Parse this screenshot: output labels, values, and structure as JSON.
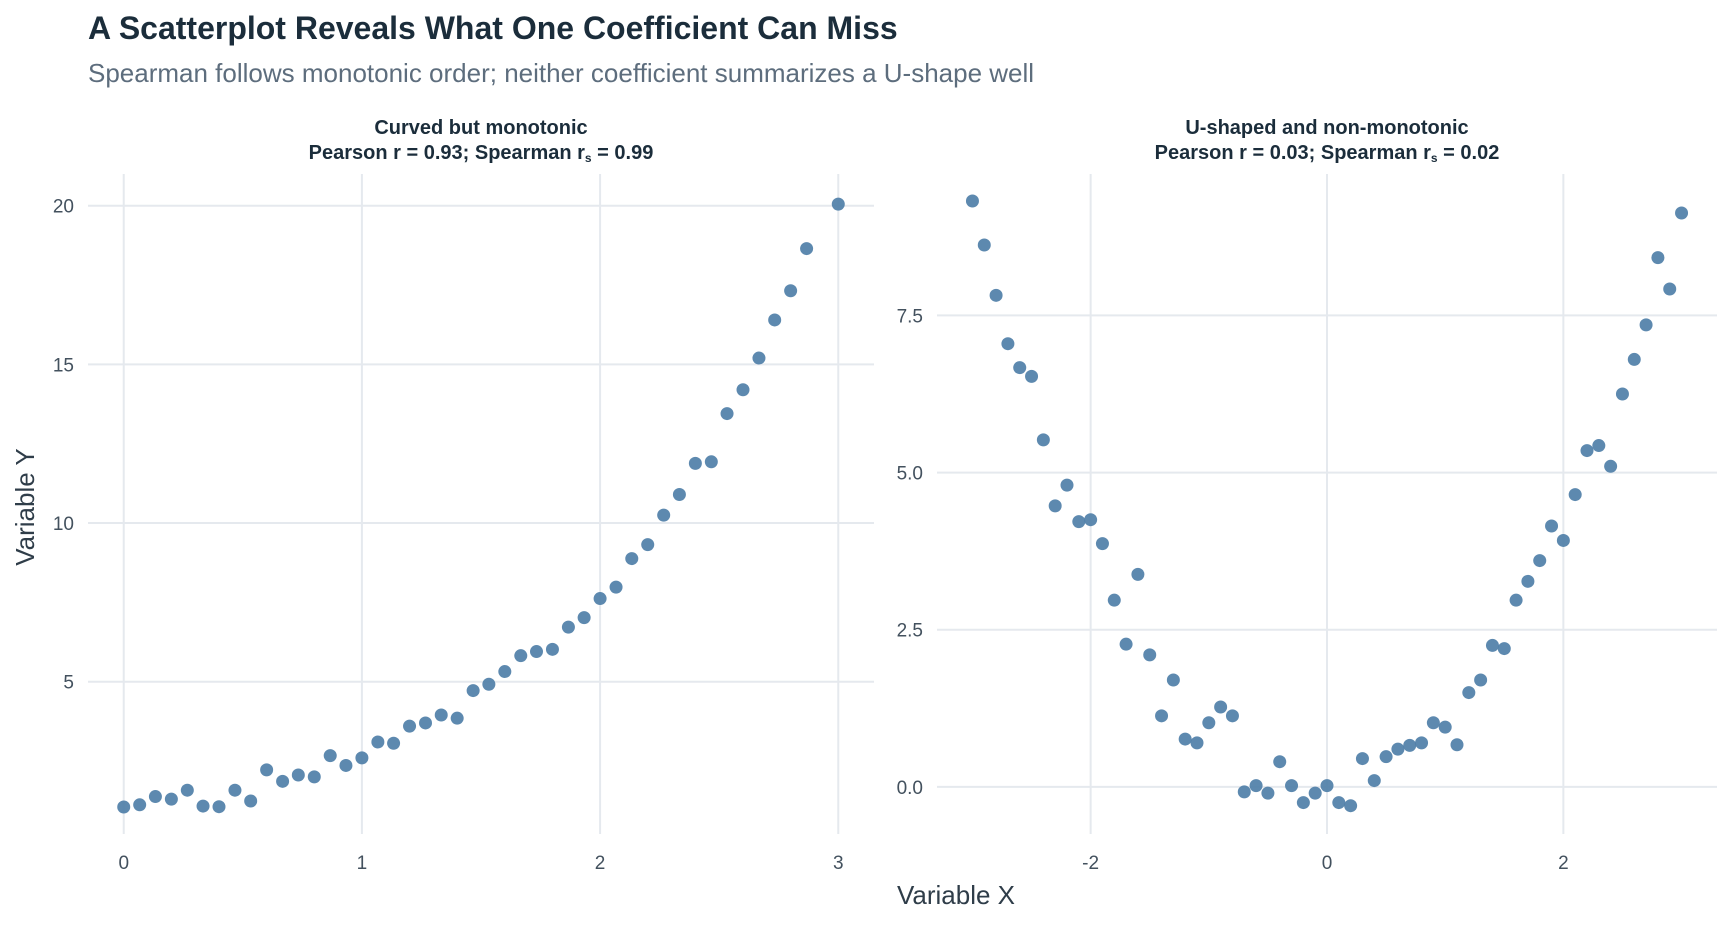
{
  "title": "A Scatterplot Reveals What One Coefficient Can Miss",
  "subtitle": "Spearman follows monotonic order; neither coefficient summarizes a U-shape well",
  "x_axis_title": "Variable X",
  "y_axis_title": "Variable Y",
  "colors": {
    "point": "#4f7fa8",
    "grid": "#e5e9ee",
    "title": "#1b2d3b",
    "subtitle": "#5d6d7d"
  },
  "chart_data": [
    {
      "type": "scatter",
      "title_line1": "Curved but monotonic",
      "title_line2_prefix": "Pearson r = 0.93; Spearman r",
      "title_line2_subscript": "s",
      "title_line2_suffix": " = 0.99",
      "x_ticks": [
        0,
        1,
        2,
        3
      ],
      "x_tick_labels": [
        "0",
        "1",
        "2",
        "3"
      ],
      "y_ticks": [
        5,
        10,
        15,
        20
      ],
      "y_tick_labels": [
        "5",
        "10",
        "15",
        "20"
      ],
      "xlim": [
        -0.15,
        3.15
      ],
      "ylim": [
        0.2,
        21.0
      ],
      "grid": true,
      "points": [
        {
          "x": 0.0,
          "y": 1.05
        },
        {
          "x": 0.067,
          "y": 1.12
        },
        {
          "x": 0.133,
          "y": 1.38
        },
        {
          "x": 0.2,
          "y": 1.3
        },
        {
          "x": 0.267,
          "y": 1.58
        },
        {
          "x": 0.333,
          "y": 1.08
        },
        {
          "x": 0.4,
          "y": 1.06
        },
        {
          "x": 0.467,
          "y": 1.58
        },
        {
          "x": 0.533,
          "y": 1.24
        },
        {
          "x": 0.6,
          "y": 2.22
        },
        {
          "x": 0.667,
          "y": 1.86
        },
        {
          "x": 0.733,
          "y": 2.06
        },
        {
          "x": 0.8,
          "y": 2.0
        },
        {
          "x": 0.867,
          "y": 2.67
        },
        {
          "x": 0.933,
          "y": 2.36
        },
        {
          "x": 1.0,
          "y": 2.6
        },
        {
          "x": 1.067,
          "y": 3.1
        },
        {
          "x": 1.133,
          "y": 3.06
        },
        {
          "x": 1.2,
          "y": 3.6
        },
        {
          "x": 1.267,
          "y": 3.7
        },
        {
          "x": 1.333,
          "y": 3.95
        },
        {
          "x": 1.4,
          "y": 3.85
        },
        {
          "x": 1.467,
          "y": 4.72
        },
        {
          "x": 1.533,
          "y": 4.92
        },
        {
          "x": 1.6,
          "y": 5.32
        },
        {
          "x": 1.667,
          "y": 5.82
        },
        {
          "x": 1.733,
          "y": 5.95
        },
        {
          "x": 1.8,
          "y": 6.02
        },
        {
          "x": 1.867,
          "y": 6.72
        },
        {
          "x": 1.933,
          "y": 7.02
        },
        {
          "x": 2.0,
          "y": 7.62
        },
        {
          "x": 2.067,
          "y": 7.98
        },
        {
          "x": 2.133,
          "y": 8.88
        },
        {
          "x": 2.2,
          "y": 9.32
        },
        {
          "x": 2.267,
          "y": 10.25
        },
        {
          "x": 2.333,
          "y": 10.9
        },
        {
          "x": 2.4,
          "y": 11.88
        },
        {
          "x": 2.467,
          "y": 11.93
        },
        {
          "x": 2.533,
          "y": 13.45
        },
        {
          "x": 2.6,
          "y": 14.2
        },
        {
          "x": 2.667,
          "y": 15.2
        },
        {
          "x": 2.733,
          "y": 16.4
        },
        {
          "x": 2.8,
          "y": 17.32
        },
        {
          "x": 2.867,
          "y": 18.65
        },
        {
          "x": 3.0,
          "y": 20.05
        }
      ]
    },
    {
      "type": "scatter",
      "title_line1": "U-shaped and non-monotonic",
      "title_line2_prefix": "Pearson r = 0.03; Spearman r",
      "title_line2_subscript": "s",
      "title_line2_suffix": " = 0.02",
      "x_ticks": [
        -2,
        0,
        2
      ],
      "x_tick_labels": [
        "-2",
        "0",
        "2"
      ],
      "y_ticks": [
        0.0,
        2.5,
        5.0,
        7.5
      ],
      "y_tick_labels": [
        "0.0",
        "2.5",
        "5.0",
        "7.5"
      ],
      "xlim": [
        -3.3,
        3.3
      ],
      "ylim": [
        -0.75,
        9.75
      ],
      "grid": true,
      "points": [
        {
          "x": -3.0,
          "y": 9.32
        },
        {
          "x": -2.9,
          "y": 8.62
        },
        {
          "x": -2.8,
          "y": 7.82
        },
        {
          "x": -2.7,
          "y": 7.05
        },
        {
          "x": -2.6,
          "y": 6.67
        },
        {
          "x": -2.5,
          "y": 6.53
        },
        {
          "x": -2.4,
          "y": 5.52
        },
        {
          "x": -2.3,
          "y": 4.47
        },
        {
          "x": -2.2,
          "y": 4.8
        },
        {
          "x": -2.1,
          "y": 4.22
        },
        {
          "x": -2.0,
          "y": 4.25
        },
        {
          "x": -1.9,
          "y": 3.87
        },
        {
          "x": -1.8,
          "y": 2.97
        },
        {
          "x": -1.7,
          "y": 2.27
        },
        {
          "x": -1.6,
          "y": 3.38
        },
        {
          "x": -1.5,
          "y": 2.1
        },
        {
          "x": -1.4,
          "y": 1.13
        },
        {
          "x": -1.3,
          "y": 1.7
        },
        {
          "x": -1.2,
          "y": 0.76
        },
        {
          "x": -1.1,
          "y": 0.7
        },
        {
          "x": -1.0,
          "y": 1.02
        },
        {
          "x": -0.9,
          "y": 1.27
        },
        {
          "x": -0.8,
          "y": 1.13
        },
        {
          "x": -0.7,
          "y": -0.08
        },
        {
          "x": -0.6,
          "y": 0.02
        },
        {
          "x": -0.5,
          "y": -0.1
        },
        {
          "x": -0.4,
          "y": 0.4
        },
        {
          "x": -0.3,
          "y": 0.02
        },
        {
          "x": -0.2,
          "y": -0.25
        },
        {
          "x": -0.1,
          "y": -0.1
        },
        {
          "x": 0.0,
          "y": 0.02
        },
        {
          "x": 0.1,
          "y": -0.25
        },
        {
          "x": 0.2,
          "y": -0.3
        },
        {
          "x": 0.3,
          "y": 0.45
        },
        {
          "x": 0.4,
          "y": 0.1
        },
        {
          "x": 0.5,
          "y": 0.48
        },
        {
          "x": 0.6,
          "y": 0.6
        },
        {
          "x": 0.7,
          "y": 0.66
        },
        {
          "x": 0.8,
          "y": 0.7
        },
        {
          "x": 0.9,
          "y": 1.02
        },
        {
          "x": 1.0,
          "y": 0.95
        },
        {
          "x": 1.1,
          "y": 0.67
        },
        {
          "x": 1.2,
          "y": 1.5
        },
        {
          "x": 1.3,
          "y": 1.7
        },
        {
          "x": 1.4,
          "y": 2.25
        },
        {
          "x": 1.5,
          "y": 2.2
        },
        {
          "x": 1.6,
          "y": 2.97
        },
        {
          "x": 1.7,
          "y": 3.27
        },
        {
          "x": 1.8,
          "y": 3.6
        },
        {
          "x": 1.9,
          "y": 4.15
        },
        {
          "x": 2.0,
          "y": 3.92
        },
        {
          "x": 2.1,
          "y": 4.65
        },
        {
          "x": 2.2,
          "y": 5.35
        },
        {
          "x": 2.3,
          "y": 5.43
        },
        {
          "x": 2.4,
          "y": 5.1
        },
        {
          "x": 2.5,
          "y": 6.25
        },
        {
          "x": 2.6,
          "y": 6.8
        },
        {
          "x": 2.7,
          "y": 7.35
        },
        {
          "x": 2.8,
          "y": 8.42
        },
        {
          "x": 2.9,
          "y": 7.92
        },
        {
          "x": 3.0,
          "y": 9.13
        }
      ]
    }
  ]
}
